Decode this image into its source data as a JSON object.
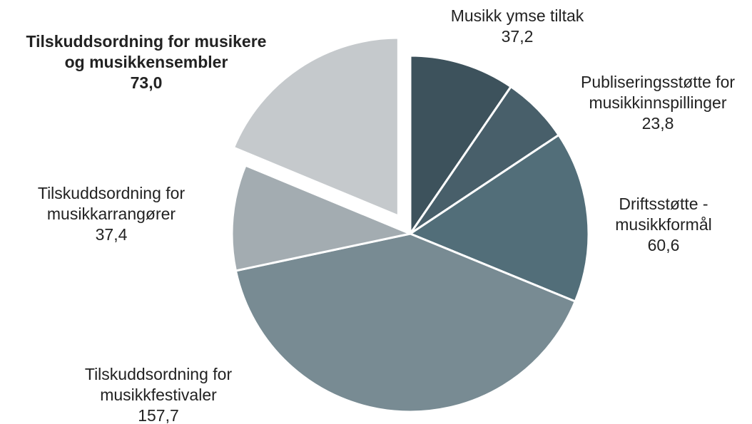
{
  "chart_data": {
    "type": "pie",
    "series": [
      {
        "slices": [
          {
            "lines": [
              "Musikk ymse tiltak"
            ],
            "value_label": "37,2",
            "value": 37.2,
            "color": "#3d525c",
            "exploded": false,
            "bold": false
          },
          {
            "lines": [
              "Publiseringsstøtte for",
              "musikkinnspillinger"
            ],
            "value_label": "23,8",
            "value": 23.8,
            "color": "#485f6a",
            "exploded": false,
            "bold": false
          },
          {
            "lines": [
              "Driftsstøtte -",
              "musikkformål"
            ],
            "value_label": "60,6",
            "value": 60.6,
            "color": "#526e79",
            "exploded": false,
            "bold": false
          },
          {
            "lines": [
              "Tilskuddsordning for",
              "musikkfestivaler"
            ],
            "value_label": "157,7",
            "value": 157.7,
            "color": "#788b93",
            "exploded": false,
            "bold": false
          },
          {
            "lines": [
              "Tilskuddsordning for",
              "musikkarrangører"
            ],
            "value_label": "37,4",
            "value": 37.4,
            "color": "#a3acb1",
            "exploded": false,
            "bold": false
          },
          {
            "lines": [
              "Tilskuddsordning for musikere",
              "og musikkensembler"
            ],
            "value_label": "73,0",
            "value": 73.0,
            "color": "#c5c9cc",
            "exploded": true,
            "bold": true
          }
        ]
      }
    ],
    "legend": "none",
    "start": "12 o'clock, clockwise"
  }
}
